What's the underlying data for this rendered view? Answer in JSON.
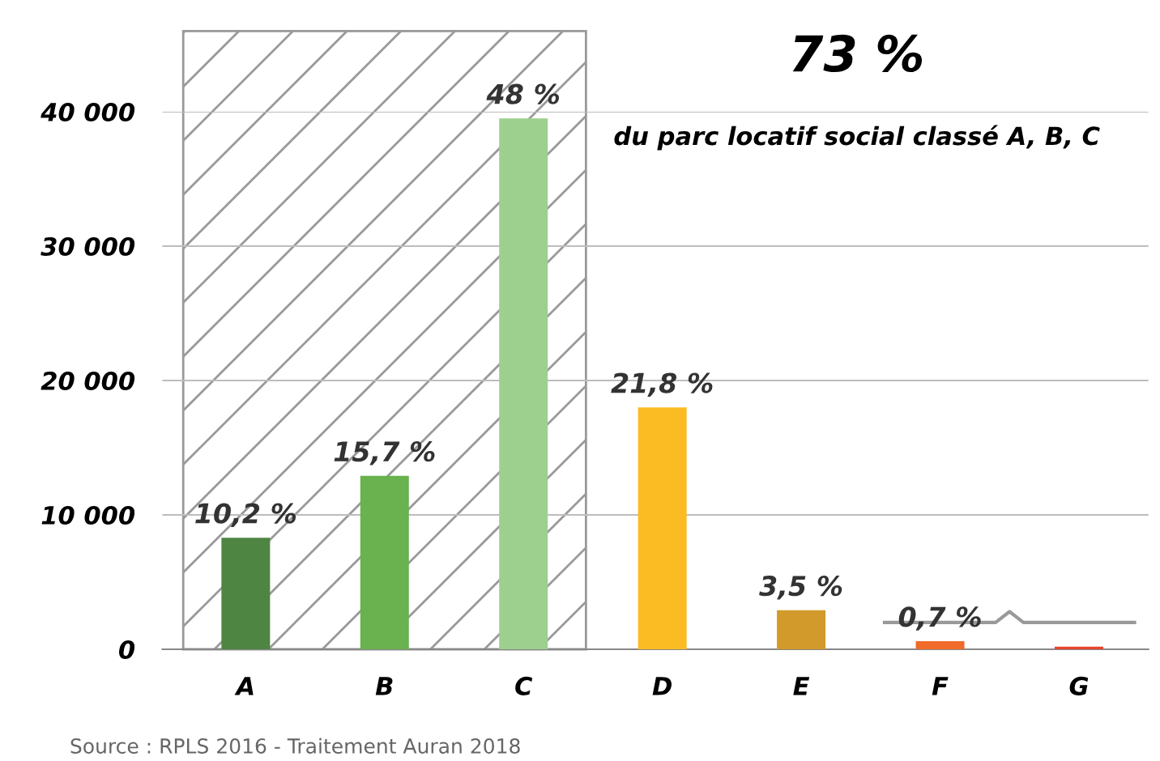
{
  "chart_data": {
    "type": "bar",
    "categories": [
      "A",
      "B",
      "C",
      "D",
      "E",
      "F",
      "G"
    ],
    "values": [
      8300,
      12900,
      39500,
      18000,
      2900,
      600,
      200
    ],
    "colors": [
      "#4e8542",
      "#6ab150",
      "#9dd08e",
      "#fbbb22",
      "#d29a2a",
      "#f06b2a",
      "#e8452a"
    ],
    "ylim": [
      0,
      40000
    ],
    "yticks": [
      0,
      {
        "value": 10000,
        "label": "10 000"
      },
      {
        "value": 20000,
        "label": "20 000"
      },
      {
        "value": 30000,
        "label": "30 000"
      },
      {
        "value": 40000,
        "label": "40 000"
      }
    ],
    "grid": "y",
    "legend": false,
    "annotations": [
      {
        "text": "10,2 %",
        "x": "A",
        "y": 8300
      },
      {
        "text": "15,7 %",
        "x": "B",
        "y": 12900
      },
      {
        "text": "48 %",
        "x": "C",
        "y": 39500
      },
      {
        "text": "21,8 %",
        "x": "D",
        "y": 18000
      },
      {
        "text": "3,5 %",
        "x": "E",
        "y": 2900
      },
      {
        "text": "0,7 %",
        "x": "F",
        "y": 600
      },
      "73 %",
      "du parc locatif social classé A, B, C",
      "Source : RPLS 2016 - Traitement Auran 2018"
    ]
  }
}
